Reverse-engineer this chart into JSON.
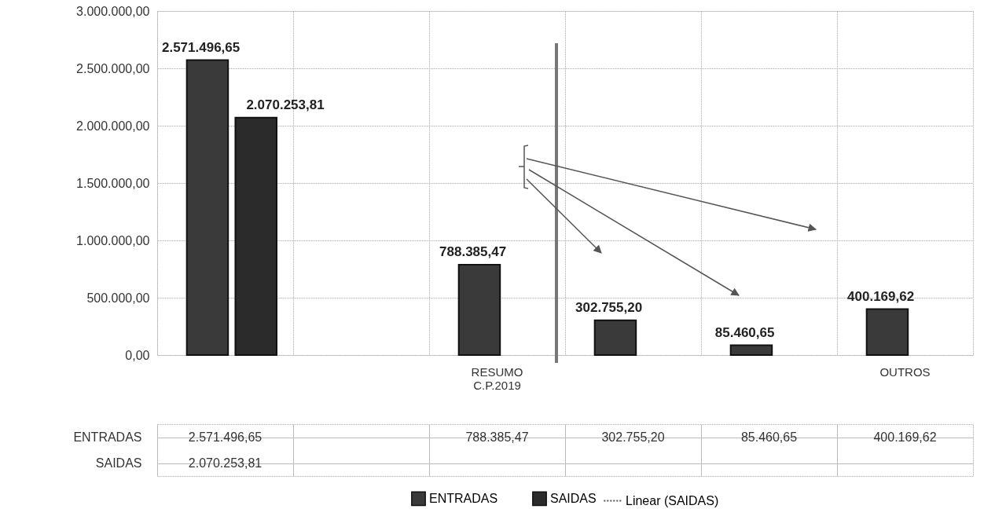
{
  "chart_data": {
    "type": "bar",
    "categories": [
      null,
      null,
      "RESUMO C.P.2019",
      null,
      null,
      "OUTROS"
    ],
    "series": [
      {
        "name": "ENTRADAS",
        "color": "#3a3a3a",
        "values": [
          2571496.65,
          null,
          788385.47,
          302755.2,
          85460.65,
          400169.62
        ],
        "value_labels": [
          "2.571.496,65",
          null,
          "788.385,47",
          "302.755,20",
          "85.460,65",
          "400.169,62"
        ]
      },
      {
        "name": "SAIDAS",
        "color": "#2b2b2b",
        "values": [
          2070253.81,
          null,
          null,
          null,
          null,
          null
        ],
        "value_labels": [
          "2.070.253,81",
          null,
          null,
          null,
          null,
          null
        ]
      },
      {
        "name": "Linear (SAIDAS)",
        "type": "line",
        "line_style": "dotted",
        "color": "#555555",
        "values": [
          null,
          null,
          null,
          null,
          null,
          null
        ]
      }
    ],
    "ylim": [
      0,
      3000000
    ],
    "yticks": [
      {
        "value": 0,
        "label": "0,00"
      },
      {
        "value": 500000,
        "label": "500.000,00"
      },
      {
        "value": 1000000,
        "label": "1.000.000,00"
      },
      {
        "value": 1500000,
        "label": "1.500.000,00"
      },
      {
        "value": 2000000,
        "label": "2.000.000,00"
      },
      {
        "value": 2500000,
        "label": "2.500.000,00"
      },
      {
        "value": 3000000,
        "label": "3.000.000,00"
      }
    ],
    "grid": true,
    "legend": "bottom"
  }
}
